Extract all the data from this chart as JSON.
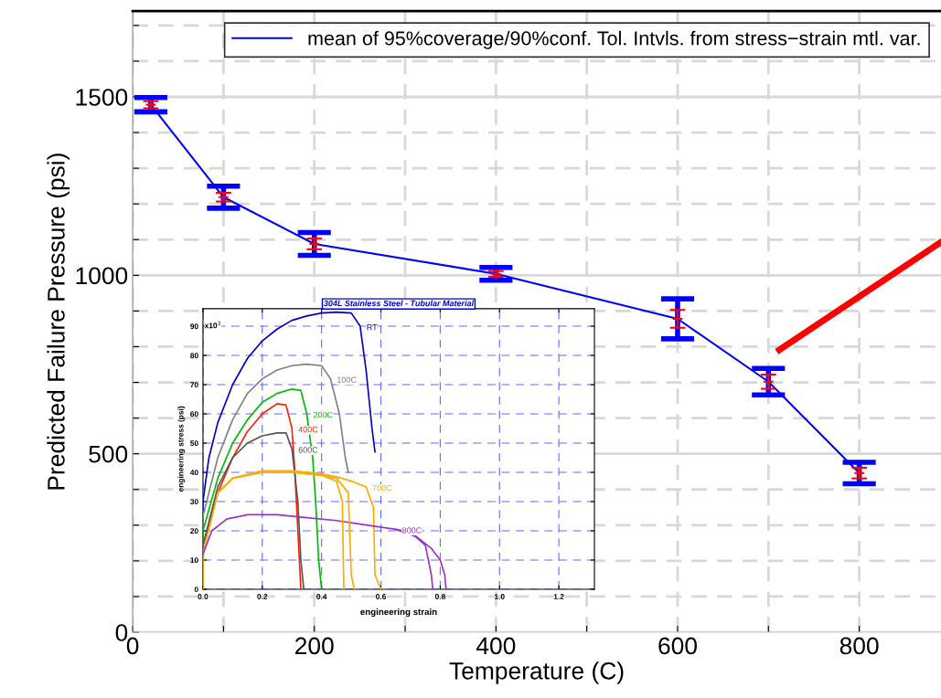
{
  "chart_data": [
    {
      "type": "line",
      "xlabel": "Temperature (C)",
      "ylabel": "Predicted Failure Pressure (psi)",
      "x": [
        20,
        100,
        200,
        400,
        600,
        700,
        800
      ],
      "series": [
        {
          "name": "mean of 95%coverage/90%conf. Tol. Intvls. from stress−strain mtl. var.",
          "color": "#0000ff",
          "values": [
            1478,
            1219,
            1088,
            1004,
            878,
            702,
            446
          ],
          "errors": [
            20,
            31,
            32,
            18,
            56,
            37,
            30
          ],
          "marker": "none"
        },
        {
          "type": "scatter",
          "color": "#ff0000",
          "values": [
            1478,
            1219,
            1088,
            1004,
            878,
            702,
            446
          ],
          "errors": [
            10,
            12,
            15,
            8,
            25,
            20,
            15
          ],
          "marker": "cross"
        },
        {
          "type": "line",
          "color": "#ff0000",
          "x": [
            712,
            890
          ],
          "values": [
            791,
            1093
          ],
          "marker": "none"
        }
      ],
      "xlim": [
        0,
        890
      ],
      "ylim": [
        0,
        1740
      ],
      "xticks": [
        0,
        {
          "value": 100,
          "label": null
        },
        200,
        {
          "value": 300,
          "label": null
        },
        400,
        {
          "value": 500,
          "label": null
        },
        600,
        {
          "value": 700,
          "label": null
        },
        800
      ],
      "yticks": [
        0,
        {
          "value": 100,
          "label": null
        },
        {
          "value": 200,
          "label": null
        },
        {
          "value": 300,
          "label": null
        },
        {
          "value": 400,
          "label": null
        },
        500,
        {
          "value": 600,
          "label": null
        },
        {
          "value": 700,
          "label": null
        },
        {
          "value": 800,
          "label": null
        },
        {
          "value": 900,
          "label": null
        },
        1000,
        {
          "value": 1100,
          "label": null
        },
        {
          "value": 1200,
          "label": null
        },
        {
          "value": 1300,
          "label": null
        },
        {
          "value": 1400,
          "label": null
        },
        1500,
        {
          "value": 1600,
          "label": null
        },
        {
          "value": 1700,
          "label": null
        }
      ],
      "grid": true,
      "legend": "top right"
    },
    {
      "type": "line",
      "title": "304L Stainless Steel - Tubular Material",
      "xlabel": "engineering strain",
      "ylabel": "engineering stress (psi)",
      "series": [
        {
          "name": "RT",
          "color": "#0000cc",
          "x": [
            0,
            0,
            0.02,
            0.05,
            0.1,
            0.15,
            0.2,
            0.25,
            0.3,
            0.35,
            0.4,
            0.45,
            0.5,
            0.53,
            0.55,
            0.57,
            0.58
          ],
          "values": [
            0,
            30,
            45,
            57,
            70,
            79,
            85,
            89,
            92,
            93.5,
            94.5,
            94.8,
            94.5,
            90,
            75,
            55,
            47
          ]
        },
        {
          "name": "100C",
          "color": "#808080",
          "x": [
            0,
            0,
            0.05,
            0.1,
            0.15,
            0.2,
            0.25,
            0.3,
            0.35,
            0.4,
            0.43,
            0.46,
            0.48,
            0.49
          ],
          "values": [
            0,
            25,
            45,
            58,
            67,
            72,
            75,
            76.5,
            77,
            76.5,
            72,
            60,
            45,
            40
          ]
        },
        {
          "name": "200C",
          "color": "#00bb00",
          "x": [
            0,
            0,
            0.05,
            0.1,
            0.15,
            0.2,
            0.25,
            0.3,
            0.33,
            0.35,
            0.37,
            0.38,
            0.39,
            0.4
          ],
          "values": [
            0,
            20,
            38,
            50,
            58,
            64,
            67,
            68.5,
            68,
            60,
            45,
            30,
            10,
            0
          ]
        },
        {
          "name": "400C",
          "color": "#ff2200",
          "x": [
            0,
            0,
            0.05,
            0.1,
            0.15,
            0.2,
            0.25,
            0.28,
            0.3,
            0.31,
            0.32,
            0.33
          ],
          "values": [
            0,
            15,
            33,
            45,
            54,
            60,
            63.5,
            63,
            55,
            40,
            20,
            0
          ]
        },
        {
          "name": "600C",
          "color": "#555555",
          "x": [
            0,
            0,
            0.05,
            0.1,
            0.15,
            0.2,
            0.25,
            0.28,
            0.3,
            0.32,
            0.33,
            0.34
          ],
          "values": [
            0,
            15,
            35,
            45,
            50,
            52.5,
            53.5,
            53.5,
            48,
            30,
            10,
            0
          ]
        },
        {
          "name": "700C",
          "color": "#ffaa00",
          "x": [
            0,
            0,
            0.05,
            0.1,
            0.2,
            0.3,
            0.4,
            0.45,
            0.5,
            0.55,
            0.575,
            0.58,
            0.6
          ],
          "values": [
            0,
            12,
            33,
            38,
            40.5,
            40.5,
            39.5,
            38.5,
            37,
            35,
            28,
            5,
            0
          ]
        },
        {
          "name": "800C",
          "color": "#9933cc",
          "x": [
            0,
            0.03,
            0.08,
            0.15,
            0.25,
            0.35,
            0.45,
            0.55,
            0.65,
            0.72,
            0.77,
            0.8,
            0.815,
            0.82
          ],
          "values": [
            12,
            20,
            24,
            25.5,
            25.5,
            24.5,
            23.5,
            22,
            20.5,
            18,
            14,
            10,
            5,
            0
          ]
        },
        {
          "color": "#ffaa00",
          "x": [
            0.05,
            0.1,
            0.2,
            0.3,
            0.4,
            0.45,
            0.47,
            0.475
          ],
          "values": [
            33,
            38,
            40,
            40,
            39,
            37,
            30,
            0
          ]
        },
        {
          "color": "#ffaa00",
          "x": [
            0.05,
            0.1,
            0.2,
            0.3,
            0.4,
            0.45,
            0.49,
            0.5,
            0.51
          ],
          "values": [
            33,
            38,
            40,
            40,
            39,
            38,
            33,
            5,
            0
          ]
        },
        {
          "color": "#9933cc",
          "x": [
            0.65,
            0.7,
            0.75,
            0.77,
            0.775
          ],
          "values": [
            20.5,
            19.5,
            15,
            5,
            0
          ]
        }
      ],
      "xlim": [
        0,
        1.32
      ],
      "ylim": [
        0,
        96
      ],
      "xticks": [
        {
          "value": 0,
          "label": "0.0"
        },
        0.2,
        0.4,
        0.6,
        0.8,
        {
          "value": 1,
          "label": "1.0"
        },
        1.2
      ],
      "yticks": [
        0,
        10,
        20,
        30,
        40,
        50,
        60,
        70,
        80,
        90
      ],
      "annotations": [
        "x10$^{3}$"
      ],
      "grid": true
    }
  ]
}
